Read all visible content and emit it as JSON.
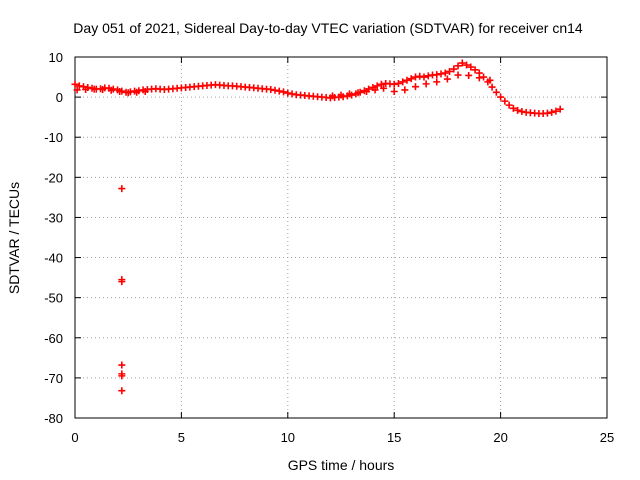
{
  "chart_data": {
    "type": "scatter",
    "title": "Day 051 of 2021, Sidereal Day-to-day VTEC variation (SDTVAR) for receiver cn14",
    "xlabel": "GPS time / hours",
    "ylabel": "SDTVAR / TECUs",
    "xlim": [
      0,
      25
    ],
    "ylim": [
      -80,
      10
    ],
    "xticks": [
      0,
      5,
      10,
      15,
      20,
      25
    ],
    "yticks": [
      10,
      0,
      -10,
      -20,
      -30,
      -40,
      -50,
      -60,
      -70,
      -80
    ],
    "grid": true,
    "marker": "+",
    "color": "#ff0000",
    "series": [
      {
        "name": "SDTVAR",
        "x": [
          0.0,
          0.2,
          0.4,
          0.6,
          0.8,
          1.0,
          1.2,
          1.4,
          1.6,
          1.8,
          2.0,
          2.2,
          2.4,
          2.6,
          2.8,
          3.0,
          3.2,
          3.4,
          3.6,
          3.8,
          4.0,
          4.2,
          4.4,
          4.6,
          4.8,
          5.0,
          5.2,
          5.4,
          5.6,
          5.8,
          6.0,
          6.2,
          6.4,
          6.6,
          6.8,
          7.0,
          7.2,
          7.4,
          7.6,
          7.8,
          8.0,
          8.2,
          8.4,
          8.6,
          8.8,
          9.0,
          9.2,
          9.4,
          9.6,
          9.8,
          10.0,
          10.2,
          10.4,
          10.6,
          10.8,
          11.0,
          11.2,
          11.4,
          11.6,
          11.8,
          12.0,
          12.2,
          12.4,
          12.6,
          12.8,
          13.0,
          13.2,
          13.4,
          13.6,
          13.8,
          14.0,
          14.2,
          14.4,
          14.6,
          14.8,
          15.0,
          15.2,
          15.4,
          15.6,
          15.8,
          16.0,
          16.2,
          16.4,
          16.6,
          16.8,
          17.0,
          17.2,
          17.4,
          17.6,
          17.8,
          18.0,
          18.2,
          18.4,
          18.6,
          18.8,
          19.0,
          19.2,
          19.4,
          19.6,
          19.8,
          20.0,
          20.2,
          20.4,
          20.6,
          20.8,
          21.0,
          21.2,
          21.4,
          21.6,
          21.8,
          22.0,
          22.2,
          22.4,
          22.6,
          22.8,
          0.1,
          0.5,
          0.9,
          1.3,
          1.7,
          2.1,
          2.5,
          2.9,
          3.3,
          12.1,
          12.5,
          12.9,
          13.3,
          13.7,
          14.1,
          14.5,
          15.0,
          15.5,
          16.0,
          16.5,
          17.0,
          17.5,
          18.0,
          18.5,
          19.0,
          19.5,
          2.2,
          2.2,
          2.2,
          2.2,
          2.2,
          2.2,
          2.2
        ],
        "y": [
          3.2,
          2.8,
          2.6,
          2.4,
          2.2,
          2.0,
          2.1,
          2.3,
          2.2,
          2.0,
          1.8,
          1.5,
          1.2,
          1.3,
          1.5,
          1.6,
          1.8,
          1.9,
          2.0,
          2.1,
          2.0,
          1.9,
          2.0,
          2.1,
          2.2,
          2.3,
          2.4,
          2.5,
          2.6,
          2.7,
          2.8,
          2.9,
          3.0,
          3.1,
          3.0,
          2.9,
          2.8,
          2.8,
          2.7,
          2.6,
          2.5,
          2.4,
          2.3,
          2.2,
          2.1,
          2.0,
          1.9,
          1.7,
          1.5,
          1.3,
          1.0,
          0.8,
          0.6,
          0.5,
          0.4,
          0.3,
          0.2,
          0.1,
          0.0,
          -0.1,
          -0.2,
          -0.1,
          0.0,
          0.1,
          0.3,
          0.5,
          0.8,
          1.2,
          1.6,
          2.0,
          2.4,
          2.8,
          3.2,
          3.4,
          3.3,
          3.2,
          3.4,
          3.8,
          4.2,
          4.6,
          5.0,
          5.2,
          5.0,
          5.3,
          5.5,
          5.6,
          5.8,
          6.0,
          6.4,
          7.0,
          7.8,
          8.5,
          8.0,
          7.5,
          6.8,
          6.0,
          5.0,
          3.8,
          2.5,
          1.2,
          0.0,
          -1.0,
          -2.0,
          -2.8,
          -3.3,
          -3.6,
          -3.8,
          -3.9,
          -4.0,
          -4.1,
          -4.1,
          -4.0,
          -3.8,
          -3.5,
          -3.0,
          1.8,
          1.9,
          2.0,
          1.9,
          1.7,
          1.4,
          1.1,
          1.2,
          1.4,
          0.3,
          0.5,
          0.8,
          1.1,
          1.4,
          1.8,
          2.2,
          1.4,
          1.8,
          2.6,
          3.3,
          3.8,
          4.5,
          5.5,
          5.4,
          4.8,
          4.2,
          -22.8,
          -45.5,
          -46.0,
          -66.8,
          -69.0,
          -69.5,
          -73.2
        ]
      }
    ]
  }
}
